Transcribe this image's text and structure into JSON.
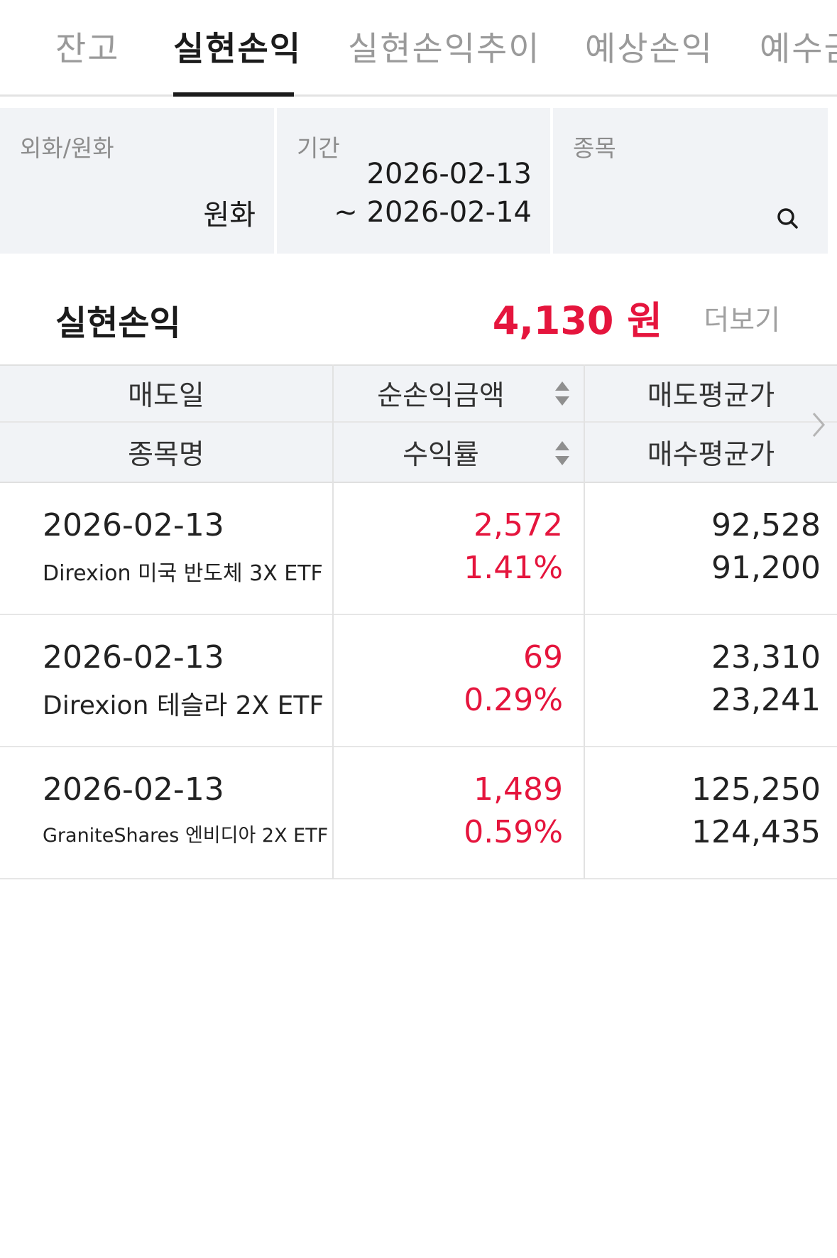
{
  "tabs": [
    {
      "label": "잔고",
      "active": false
    },
    {
      "label": "실현손익",
      "active": true
    },
    {
      "label": "실현손익추이",
      "active": false
    },
    {
      "label": "예상손익",
      "active": false
    },
    {
      "label": "예수금",
      "active": false
    }
  ],
  "filters": {
    "currency": {
      "label": "외화/원화",
      "value": "원화"
    },
    "period": {
      "label": "기간",
      "start": "2026-02-13",
      "end": "~ 2026-02-14"
    },
    "stock": {
      "label": "종목",
      "icon": "search-icon"
    }
  },
  "summary": {
    "title": "실현손익",
    "amount": "4,130 원",
    "more_label": "더보기"
  },
  "table": {
    "headers": {
      "row1": [
        "매도일",
        "순손익금액",
        "매도평균가"
      ],
      "row2": [
        "종목명",
        "수익률",
        "매수평균가"
      ]
    },
    "rows": [
      {
        "date": "2026-02-13",
        "name": "Direxion 미국 반도체 3X ETF",
        "profit": "2,572",
        "rate": "1.41%",
        "sell_avg": "92,528",
        "buy_avg": "91,200"
      },
      {
        "date": "2026-02-13",
        "name": "Direxion 테슬라 2X ETF",
        "profit": "69",
        "rate": "0.29%",
        "sell_avg": "23,310",
        "buy_avg": "23,241"
      },
      {
        "date": "2026-02-13",
        "name": "GraniteShares 엔비디아 2X ETF",
        "profit": "1,489",
        "rate": "0.59%",
        "sell_avg": "125,250",
        "buy_avg": "124,435"
      }
    ]
  },
  "colors": {
    "accent_red": "#e5153d",
    "panel_gray": "#f1f3f6"
  }
}
